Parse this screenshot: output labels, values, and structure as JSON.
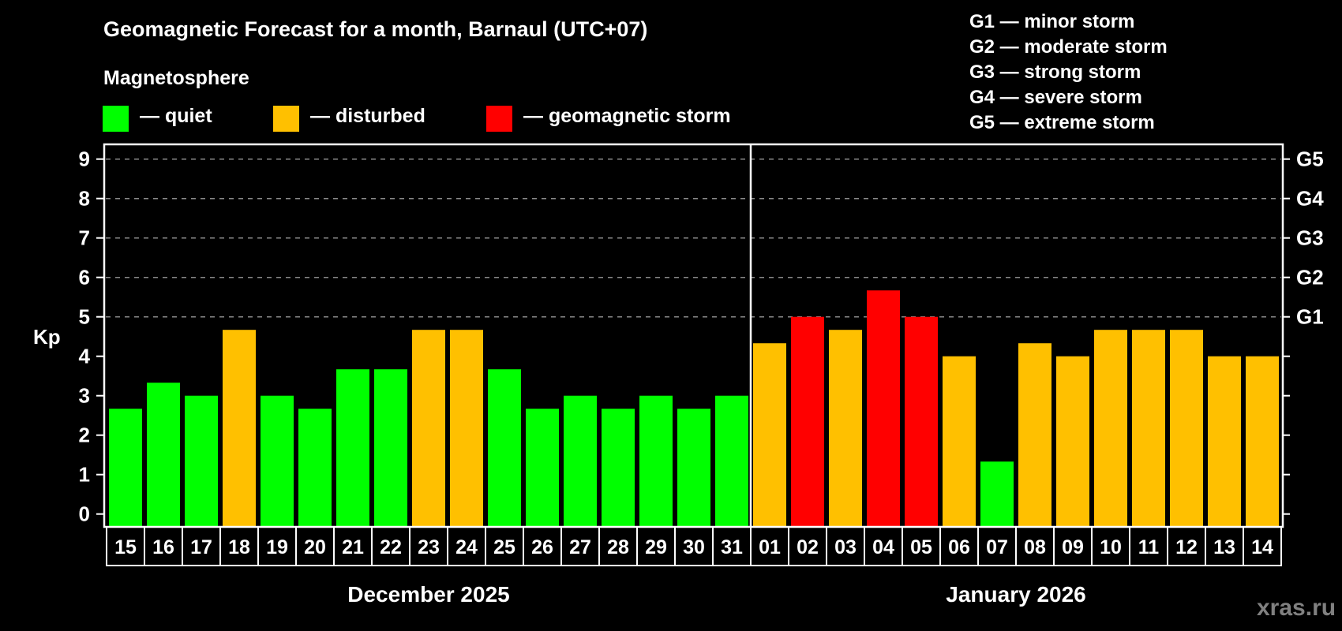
{
  "title": "Geomagnetic Forecast for a month, Barnaul (UTC+07)",
  "legend": {
    "heading": "Magnetosphere",
    "items": [
      {
        "label": "— quiet",
        "color": "#00ff00"
      },
      {
        "label": "— disturbed",
        "color": "#ffc000"
      },
      {
        "label": "— geomagnetic storm",
        "color": "#ff0000"
      }
    ]
  },
  "g_scale": [
    "G1 — minor storm",
    "G2 — moderate storm",
    "G3 — strong storm",
    "G4 — severe storm",
    "G5 — extreme storm"
  ],
  "watermark": "xras.ru",
  "chart_data": {
    "type": "bar",
    "ylabel": "Kp",
    "ylim": [
      0,
      9
    ],
    "yticks": [
      "0",
      "1",
      "2",
      "3",
      "4",
      "5",
      "6",
      "7",
      "8",
      "9"
    ],
    "right_ticks": [
      {
        "value": 5,
        "label": "G1"
      },
      {
        "value": 6,
        "label": "G2"
      },
      {
        "value": 7,
        "label": "G3"
      },
      {
        "value": 8,
        "label": "G4"
      },
      {
        "value": 9,
        "label": "G5"
      }
    ],
    "grid": "dashed at Kp 5-9",
    "months": [
      {
        "label": "December 2025",
        "days": [
          "15",
          "16",
          "17",
          "18",
          "19",
          "20",
          "21",
          "22",
          "23",
          "24",
          "25",
          "26",
          "27",
          "28",
          "29",
          "30",
          "31"
        ],
        "values": [
          2.67,
          3.33,
          3.0,
          4.67,
          3.0,
          2.67,
          3.67,
          3.67,
          4.67,
          4.67,
          3.67,
          2.67,
          3.0,
          2.67,
          3.0,
          2.67,
          3.0
        ],
        "status": [
          "quiet",
          "quiet",
          "quiet",
          "disturbed",
          "quiet",
          "quiet",
          "quiet",
          "quiet",
          "disturbed",
          "disturbed",
          "quiet",
          "quiet",
          "quiet",
          "quiet",
          "quiet",
          "quiet",
          "quiet"
        ]
      },
      {
        "label": "January 2026",
        "days": [
          "01",
          "02",
          "03",
          "04",
          "05",
          "06",
          "07",
          "08",
          "09",
          "10",
          "11",
          "12",
          "13",
          "14"
        ],
        "values": [
          4.33,
          5.0,
          4.67,
          5.67,
          5.0,
          4.0,
          1.33,
          4.33,
          4.0,
          4.67,
          4.67,
          4.67,
          4.0,
          4.0
        ],
        "status": [
          "disturbed",
          "storm",
          "disturbed",
          "storm",
          "storm",
          "disturbed",
          "quiet",
          "disturbed",
          "disturbed",
          "disturbed",
          "disturbed",
          "disturbed",
          "disturbed",
          "disturbed"
        ]
      }
    ],
    "colors": {
      "quiet": "#00ff00",
      "disturbed": "#ffc000",
      "storm": "#ff0000"
    }
  }
}
